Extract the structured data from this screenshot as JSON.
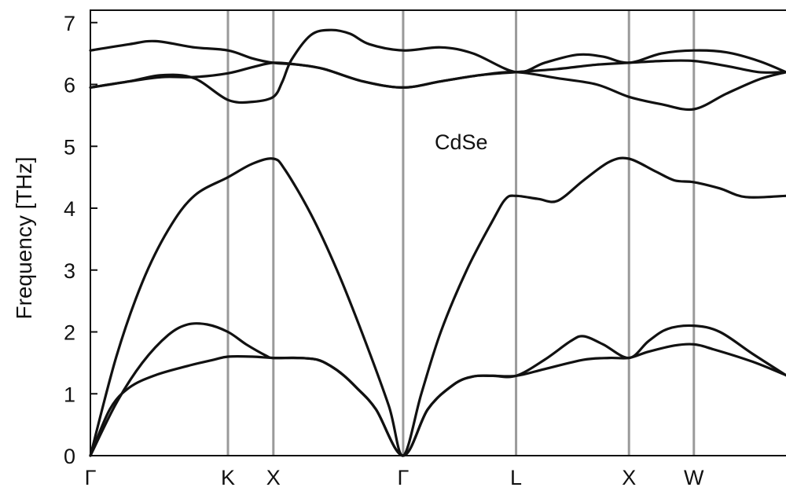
{
  "chart_data": {
    "type": "line",
    "title": "",
    "annotation": "CdSe",
    "xlabel": "",
    "ylabel": "Frequency [THz]",
    "ylim": [
      0,
      7.2
    ],
    "yticks": [
      "0",
      "1",
      "2",
      "3",
      "4",
      "5",
      "6",
      "7"
    ],
    "grid": false,
    "legend": "none",
    "color": "#111111",
    "symmetry_points": [
      {
        "label": "Γ",
        "k": 0.0
      },
      {
        "label": "K",
        "k": 1.06
      },
      {
        "label": "X",
        "k": 1.41
      },
      {
        "label": "Γ",
        "k": 2.41
      },
      {
        "label": "L",
        "k": 3.28
      },
      {
        "label": "X",
        "k": 4.15
      },
      {
        "label": "W",
        "k": 4.65
      },
      {
        "label": "",
        "k": 5.36
      }
    ],
    "series": [
      {
        "points": [
          [
            0,
            0
          ],
          [
            0.15,
            0.75
          ],
          [
            0.3,
            1.1
          ],
          [
            0.5,
            1.3
          ],
          [
            0.75,
            1.45
          ],
          [
            0.95,
            1.55
          ],
          [
            1.06,
            1.6
          ],
          [
            1.25,
            1.6
          ],
          [
            1.41,
            1.58
          ],
          [
            1.6,
            1.58
          ],
          [
            1.75,
            1.55
          ],
          [
            1.85,
            1.45
          ],
          [
            1.95,
            1.3
          ],
          [
            2.05,
            1.1
          ],
          [
            2.2,
            0.75
          ],
          [
            2.41,
            0
          ],
          [
            2.6,
            0.75
          ],
          [
            2.8,
            1.15
          ],
          [
            2.95,
            1.28
          ],
          [
            3.1,
            1.29
          ],
          [
            3.28,
            1.29
          ],
          [
            3.5,
            1.4
          ],
          [
            3.8,
            1.55
          ],
          [
            4.0,
            1.58
          ],
          [
            4.15,
            1.58
          ],
          [
            4.3,
            1.68
          ],
          [
            4.5,
            1.78
          ],
          [
            4.65,
            1.8
          ],
          [
            4.8,
            1.72
          ],
          [
            5.1,
            1.52
          ],
          [
            5.36,
            1.3
          ]
        ]
      },
      {
        "points": [
          [
            0,
            0
          ],
          [
            0.2,
            0.85
          ],
          [
            0.4,
            1.5
          ],
          [
            0.6,
            1.95
          ],
          [
            0.75,
            2.12
          ],
          [
            0.9,
            2.12
          ],
          [
            1.06,
            2.0
          ],
          [
            1.2,
            1.8
          ],
          [
            1.35,
            1.62
          ],
          [
            1.41,
            1.58
          ],
          [
            1.6,
            1.58
          ],
          [
            1.75,
            1.55
          ],
          [
            1.85,
            1.45
          ],
          [
            1.95,
            1.3
          ],
          [
            2.05,
            1.1
          ],
          [
            2.2,
            0.75
          ],
          [
            2.41,
            0
          ],
          [
            2.6,
            0.75
          ],
          [
            2.8,
            1.15
          ],
          [
            2.95,
            1.28
          ],
          [
            3.1,
            1.29
          ],
          [
            3.28,
            1.29
          ],
          [
            3.5,
            1.55
          ],
          [
            3.7,
            1.85
          ],
          [
            3.8,
            1.93
          ],
          [
            3.95,
            1.8
          ],
          [
            4.15,
            1.58
          ],
          [
            4.3,
            1.85
          ],
          [
            4.45,
            2.05
          ],
          [
            4.65,
            2.1
          ],
          [
            4.85,
            2.0
          ],
          [
            5.1,
            1.65
          ],
          [
            5.36,
            1.3
          ]
        ]
      },
      {
        "points": [
          [
            0,
            0
          ],
          [
            0.2,
            1.6
          ],
          [
            0.4,
            2.8
          ],
          [
            0.6,
            3.65
          ],
          [
            0.8,
            4.2
          ],
          [
            1.06,
            4.5
          ],
          [
            1.25,
            4.72
          ],
          [
            1.41,
            4.8
          ],
          [
            1.5,
            4.62
          ],
          [
            1.7,
            3.9
          ],
          [
            1.9,
            3.0
          ],
          [
            2.1,
            1.95
          ],
          [
            2.3,
            0.8
          ],
          [
            2.41,
            0
          ],
          [
            2.55,
            1.0
          ],
          [
            2.7,
            2.0
          ],
          [
            2.9,
            3.0
          ],
          [
            3.1,
            3.8
          ],
          [
            3.2,
            4.15
          ],
          [
            3.28,
            4.2
          ],
          [
            3.45,
            4.15
          ],
          [
            3.6,
            4.12
          ],
          [
            3.8,
            4.45
          ],
          [
            4.0,
            4.75
          ],
          [
            4.15,
            4.8
          ],
          [
            4.35,
            4.6
          ],
          [
            4.5,
            4.45
          ],
          [
            4.65,
            4.42
          ],
          [
            4.85,
            4.32
          ],
          [
            5.05,
            4.18
          ],
          [
            5.36,
            4.2
          ]
        ]
      },
      {
        "points": [
          [
            0,
            5.95
          ],
          [
            0.3,
            6.05
          ],
          [
            0.55,
            6.15
          ],
          [
            0.8,
            6.1
          ],
          [
            1.06,
            5.75
          ],
          [
            1.25,
            5.72
          ],
          [
            1.41,
            5.8
          ],
          [
            1.48,
            6.05
          ],
          [
            1.55,
            6.4
          ],
          [
            1.7,
            6.8
          ],
          [
            1.85,
            6.88
          ],
          [
            2.0,
            6.82
          ],
          [
            2.15,
            6.65
          ],
          [
            2.41,
            6.55
          ],
          [
            2.7,
            6.6
          ],
          [
            2.95,
            6.5
          ],
          [
            3.28,
            6.2
          ],
          [
            3.5,
            6.35
          ],
          [
            3.75,
            6.48
          ],
          [
            3.95,
            6.45
          ],
          [
            4.15,
            6.35
          ],
          [
            4.4,
            6.5
          ],
          [
            4.65,
            6.55
          ],
          [
            4.9,
            6.52
          ],
          [
            5.15,
            6.38
          ],
          [
            5.36,
            6.2
          ]
        ]
      },
      {
        "points": [
          [
            0,
            6.55
          ],
          [
            0.3,
            6.65
          ],
          [
            0.5,
            6.7
          ],
          [
            0.8,
            6.6
          ],
          [
            1.06,
            6.55
          ],
          [
            1.25,
            6.42
          ],
          [
            1.41,
            6.35
          ],
          [
            1.6,
            6.32
          ],
          [
            1.8,
            6.25
          ],
          [
            2.1,
            6.05
          ],
          [
            2.41,
            5.95
          ],
          [
            2.7,
            6.05
          ],
          [
            3.0,
            6.15
          ],
          [
            3.28,
            6.2
          ],
          [
            3.6,
            6.1
          ],
          [
            3.9,
            6.0
          ],
          [
            4.15,
            5.8
          ],
          [
            4.4,
            5.68
          ],
          [
            4.65,
            5.6
          ],
          [
            4.9,
            5.85
          ],
          [
            5.15,
            6.08
          ],
          [
            5.36,
            6.2
          ]
        ]
      },
      {
        "points": [
          [
            0,
            5.95
          ],
          [
            0.3,
            6.05
          ],
          [
            0.55,
            6.12
          ],
          [
            0.8,
            6.12
          ],
          [
            1.06,
            6.18
          ],
          [
            1.25,
            6.28
          ],
          [
            1.41,
            6.35
          ],
          [
            1.6,
            6.32
          ],
          [
            1.8,
            6.25
          ],
          [
            2.1,
            6.05
          ],
          [
            2.41,
            5.95
          ],
          [
            2.7,
            6.05
          ],
          [
            3.0,
            6.15
          ],
          [
            3.28,
            6.2
          ],
          [
            3.6,
            6.25
          ],
          [
            3.9,
            6.32
          ],
          [
            4.15,
            6.35
          ],
          [
            4.4,
            6.38
          ],
          [
            4.65,
            6.38
          ],
          [
            4.9,
            6.3
          ],
          [
            5.15,
            6.2
          ],
          [
            5.36,
            6.2
          ]
        ]
      }
    ]
  }
}
